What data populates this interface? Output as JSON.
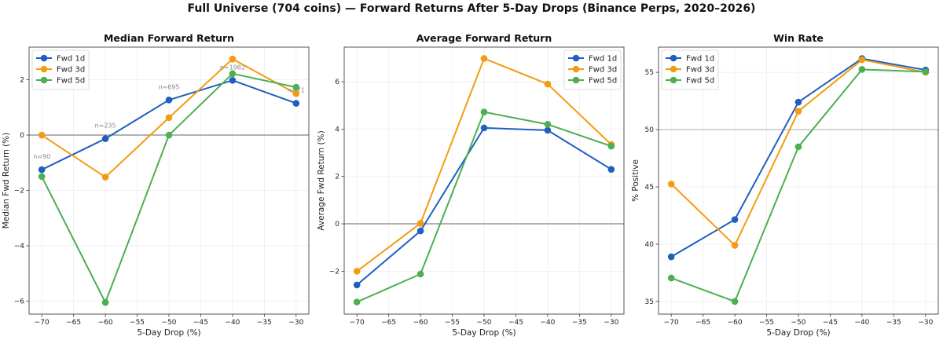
{
  "suptitle": "Full Universe (704 coins) — Forward Returns After 5-Day Drops (Binance Perps, 2020–2026)",
  "colors": {
    "Fwd 1d": "#1f5fbf",
    "Fwd 3d": "#f39c12",
    "Fwd 5d": "#4caf50"
  },
  "chart_data": [
    {
      "type": "line",
      "title": "Median Forward Return",
      "xlabel": "5-Day Drop (%)",
      "ylabel": "Median Fwd Return (%)",
      "x": [
        -70,
        -60,
        -50,
        -40,
        -30
      ],
      "xlim": [
        -72,
        -28
      ],
      "ylim": [
        -6.47,
        3.18
      ],
      "xticks": [
        -70,
        -65,
        -60,
        -55,
        -50,
        -45,
        -40,
        -35,
        -30
      ],
      "yticks": [
        -6,
        -4,
        -2,
        0,
        2
      ],
      "reference_line": 0,
      "grid": true,
      "legend": "upper-left",
      "annotations": [
        "n=90",
        "n=235",
        "n=695",
        "n=1982",
        "n=71"
      ],
      "series": [
        {
          "name": "Fwd 1d",
          "values": [
            -1.25,
            -0.13,
            1.27,
            1.98,
            1.15
          ]
        },
        {
          "name": "Fwd 3d",
          "values": [
            0.0,
            -1.52,
            0.63,
            2.75,
            1.5
          ]
        },
        {
          "name": "Fwd 5d",
          "values": [
            -1.5,
            -6.05,
            0.0,
            2.22,
            1.73
          ]
        }
      ]
    },
    {
      "type": "line",
      "title": "Average Forward Return",
      "xlabel": "5-Day Drop (%)",
      "ylabel": "Average Fwd Return (%)",
      "x": [
        -70,
        -60,
        -50,
        -40,
        -30
      ],
      "xlim": [
        -72,
        -28
      ],
      "ylim": [
        -3.81,
        7.46
      ],
      "xticks": [
        -70,
        -65,
        -60,
        -55,
        -50,
        -45,
        -40,
        -35,
        -30
      ],
      "yticks": [
        -2,
        0,
        2,
        4,
        6
      ],
      "reference_line": 0,
      "grid": true,
      "legend": "upper-right",
      "series": [
        {
          "name": "Fwd 1d",
          "values": [
            -2.58,
            -0.3,
            4.05,
            3.95,
            2.3
          ]
        },
        {
          "name": "Fwd 3d",
          "values": [
            -2.0,
            0.02,
            6.98,
            5.9,
            3.35
          ]
        },
        {
          "name": "Fwd 5d",
          "values": [
            -3.3,
            -2.12,
            4.72,
            4.2,
            3.28
          ]
        }
      ]
    },
    {
      "type": "line",
      "title": "Win Rate",
      "xlabel": "5-Day Drop (%)",
      "ylabel": "% Positive",
      "x": [
        -70,
        -60,
        -50,
        -40,
        -30
      ],
      "xlim": [
        -72,
        -28
      ],
      "ylim": [
        33.9,
        57.2
      ],
      "xticks": [
        -70,
        -65,
        -60,
        -55,
        -50,
        -45,
        -40,
        -35,
        -30
      ],
      "yticks": [
        35,
        40,
        45,
        50,
        55
      ],
      "reference_line": 50,
      "grid": true,
      "legend": "upper-left",
      "series": [
        {
          "name": "Fwd 1d",
          "values": [
            38.9,
            42.15,
            52.4,
            56.2,
            55.2
          ]
        },
        {
          "name": "Fwd 3d",
          "values": [
            45.25,
            39.9,
            51.6,
            56.1,
            55.0
          ]
        },
        {
          "name": "Fwd 5d",
          "values": [
            37.05,
            35.0,
            48.5,
            55.25,
            55.05
          ]
        }
      ]
    }
  ]
}
